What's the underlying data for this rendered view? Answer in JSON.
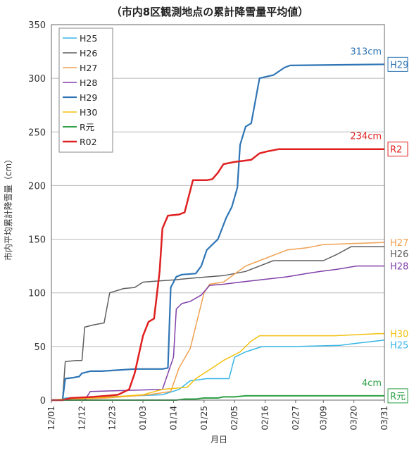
{
  "chart_data": {
    "type": "line",
    "title": "（市内8区観測地点の累計降雪量平均値）",
    "xlabel": "月日",
    "ylabel": "市内平均累計降雪量（cm）",
    "ylim": [
      0,
      350
    ],
    "yticks": [
      "0",
      "50",
      "100",
      "150",
      "200",
      "250",
      "300",
      "350"
    ],
    "x_day_range": [
      0,
      120
    ],
    "xticks": [
      {
        "label": "12/01",
        "day": 0
      },
      {
        "label": "12/12",
        "day": 11
      },
      {
        "label": "12/23",
        "day": 22
      },
      {
        "label": "01/03",
        "day": 33
      },
      {
        "label": "01/14",
        "day": 44
      },
      {
        "label": "01/25",
        "day": 55
      },
      {
        "label": "02/05",
        "day": 66
      },
      {
        "label": "02/16",
        "day": 77
      },
      {
        "label": "02/27",
        "day": 88
      },
      {
        "label": "03/09",
        "day": 98
      },
      {
        "label": "03/20",
        "day": 109
      },
      {
        "label": "03/31",
        "day": 120
      }
    ],
    "grid": "horizontal",
    "legend_position": "top-left",
    "series": [
      {
        "name": "H25",
        "color": "#38b5e6",
        "width": 1.5,
        "end_tag": "H25",
        "boxed": false,
        "points": [
          [
            0,
            0
          ],
          [
            3,
            0
          ],
          [
            5,
            2
          ],
          [
            20,
            3
          ],
          [
            40,
            5
          ],
          [
            46,
            10
          ],
          [
            50,
            18
          ],
          [
            56,
            20
          ],
          [
            64,
            20
          ],
          [
            66,
            40
          ],
          [
            70,
            45
          ],
          [
            76,
            50
          ],
          [
            88,
            50
          ],
          [
            104,
            51
          ],
          [
            110,
            53
          ],
          [
            120,
            56
          ]
        ]
      },
      {
        "name": "H26",
        "color": "#5e5e5e",
        "width": 1.5,
        "end_tag": "H26",
        "boxed": false,
        "points": [
          [
            0,
            0
          ],
          [
            4,
            0
          ],
          [
            5,
            36
          ],
          [
            9,
            37
          ],
          [
            11,
            37
          ],
          [
            12,
            68
          ],
          [
            15,
            70
          ],
          [
            19,
            72
          ],
          [
            21,
            100
          ],
          [
            26,
            104
          ],
          [
            30,
            105
          ],
          [
            33,
            110
          ],
          [
            38,
            111
          ],
          [
            44,
            112
          ],
          [
            52,
            114
          ],
          [
            62,
            116
          ],
          [
            70,
            120
          ],
          [
            80,
            130
          ],
          [
            98,
            130
          ],
          [
            103,
            136
          ],
          [
            108,
            143
          ],
          [
            120,
            143
          ]
        ]
      },
      {
        "name": "H27",
        "color": "#f0a050",
        "width": 1.5,
        "end_tag": "H27",
        "boxed": false,
        "points": [
          [
            0,
            0
          ],
          [
            20,
            2
          ],
          [
            35,
            5
          ],
          [
            43,
            8
          ],
          [
            46,
            30
          ],
          [
            50,
            48
          ],
          [
            55,
            100
          ],
          [
            57,
            108
          ],
          [
            62,
            110
          ],
          [
            70,
            125
          ],
          [
            75,
            130
          ],
          [
            85,
            140
          ],
          [
            92,
            142
          ],
          [
            98,
            145
          ],
          [
            120,
            147
          ]
        ]
      },
      {
        "name": "H28",
        "color": "#8040a8",
        "width": 1.5,
        "end_tag": "H28",
        "boxed": false,
        "points": [
          [
            0,
            0
          ],
          [
            12,
            0
          ],
          [
            14,
            8
          ],
          [
            40,
            10
          ],
          [
            44,
            40
          ],
          [
            45,
            85
          ],
          [
            47,
            90
          ],
          [
            50,
            92
          ],
          [
            54,
            98
          ],
          [
            57,
            107
          ],
          [
            62,
            108
          ],
          [
            68,
            110
          ],
          [
            75,
            112
          ],
          [
            85,
            115
          ],
          [
            92,
            118
          ],
          [
            97,
            120
          ],
          [
            103,
            122
          ],
          [
            110,
            125
          ],
          [
            120,
            125
          ]
        ]
      },
      {
        "name": "H29",
        "color": "#2f75b5",
        "width": 2.2,
        "end_tag": "H29",
        "boxed": true,
        "callout": "313cm",
        "points": [
          [
            0,
            0
          ],
          [
            4,
            0
          ],
          [
            5,
            20
          ],
          [
            8,
            21
          ],
          [
            10,
            22
          ],
          [
            11,
            25
          ],
          [
            14,
            27
          ],
          [
            18,
            27
          ],
          [
            24,
            28
          ],
          [
            30,
            29
          ],
          [
            40,
            29
          ],
          [
            42,
            30
          ],
          [
            43,
            105
          ],
          [
            45,
            115
          ],
          [
            47,
            117
          ],
          [
            52,
            118
          ],
          [
            54,
            125
          ],
          [
            56,
            140
          ],
          [
            60,
            150
          ],
          [
            63,
            170
          ],
          [
            65,
            180
          ],
          [
            67,
            198
          ],
          [
            68,
            238
          ],
          [
            70,
            255
          ],
          [
            72,
            258
          ],
          [
            75,
            300
          ],
          [
            80,
            303
          ],
          [
            84,
            310
          ],
          [
            86,
            312
          ],
          [
            120,
            313
          ]
        ]
      },
      {
        "name": "H30",
        "color": "#f2c00e",
        "width": 1.5,
        "end_tag": "H30",
        "boxed": false,
        "points": [
          [
            0,
            0
          ],
          [
            5,
            1
          ],
          [
            22,
            3
          ],
          [
            33,
            5
          ],
          [
            40,
            10
          ],
          [
            49,
            12
          ],
          [
            52,
            20
          ],
          [
            58,
            30
          ],
          [
            62,
            37
          ],
          [
            68,
            45
          ],
          [
            72,
            55
          ],
          [
            75,
            60
          ],
          [
            85,
            60
          ],
          [
            95,
            60
          ],
          [
            102,
            60
          ],
          [
            110,
            61
          ],
          [
            118,
            62
          ],
          [
            120,
            62
          ]
        ]
      },
      {
        "name": "R元",
        "color": "#2fa046",
        "width": 2,
        "end_tag": "R元",
        "boxed": true,
        "callout": "4cm",
        "points": [
          [
            0,
            0
          ],
          [
            45,
            0
          ],
          [
            48,
            1
          ],
          [
            52,
            1
          ],
          [
            55,
            2
          ],
          [
            60,
            2
          ],
          [
            62,
            3
          ],
          [
            66,
            3
          ],
          [
            70,
            4
          ],
          [
            120,
            4
          ]
        ]
      },
      {
        "name": "R02",
        "color": "#e02020",
        "width": 2.5,
        "end_tag": "R2",
        "boxed": true,
        "callout": "234cm",
        "points": [
          [
            0,
            0
          ],
          [
            4,
            0
          ],
          [
            7,
            2
          ],
          [
            15,
            3
          ],
          [
            20,
            4
          ],
          [
            24,
            5
          ],
          [
            28,
            10
          ],
          [
            30,
            25
          ],
          [
            33,
            60
          ],
          [
            35,
            73
          ],
          [
            37,
            76
          ],
          [
            39,
            120
          ],
          [
            40,
            160
          ],
          [
            42,
            172
          ],
          [
            46,
            173
          ],
          [
            48,
            175
          ],
          [
            51,
            205
          ],
          [
            56,
            205
          ],
          [
            58,
            206
          ],
          [
            60,
            212
          ],
          [
            62,
            220
          ],
          [
            66,
            222
          ],
          [
            72,
            224
          ],
          [
            75,
            230
          ],
          [
            78,
            232
          ],
          [
            82,
            234
          ],
          [
            120,
            234
          ]
        ]
      }
    ]
  }
}
